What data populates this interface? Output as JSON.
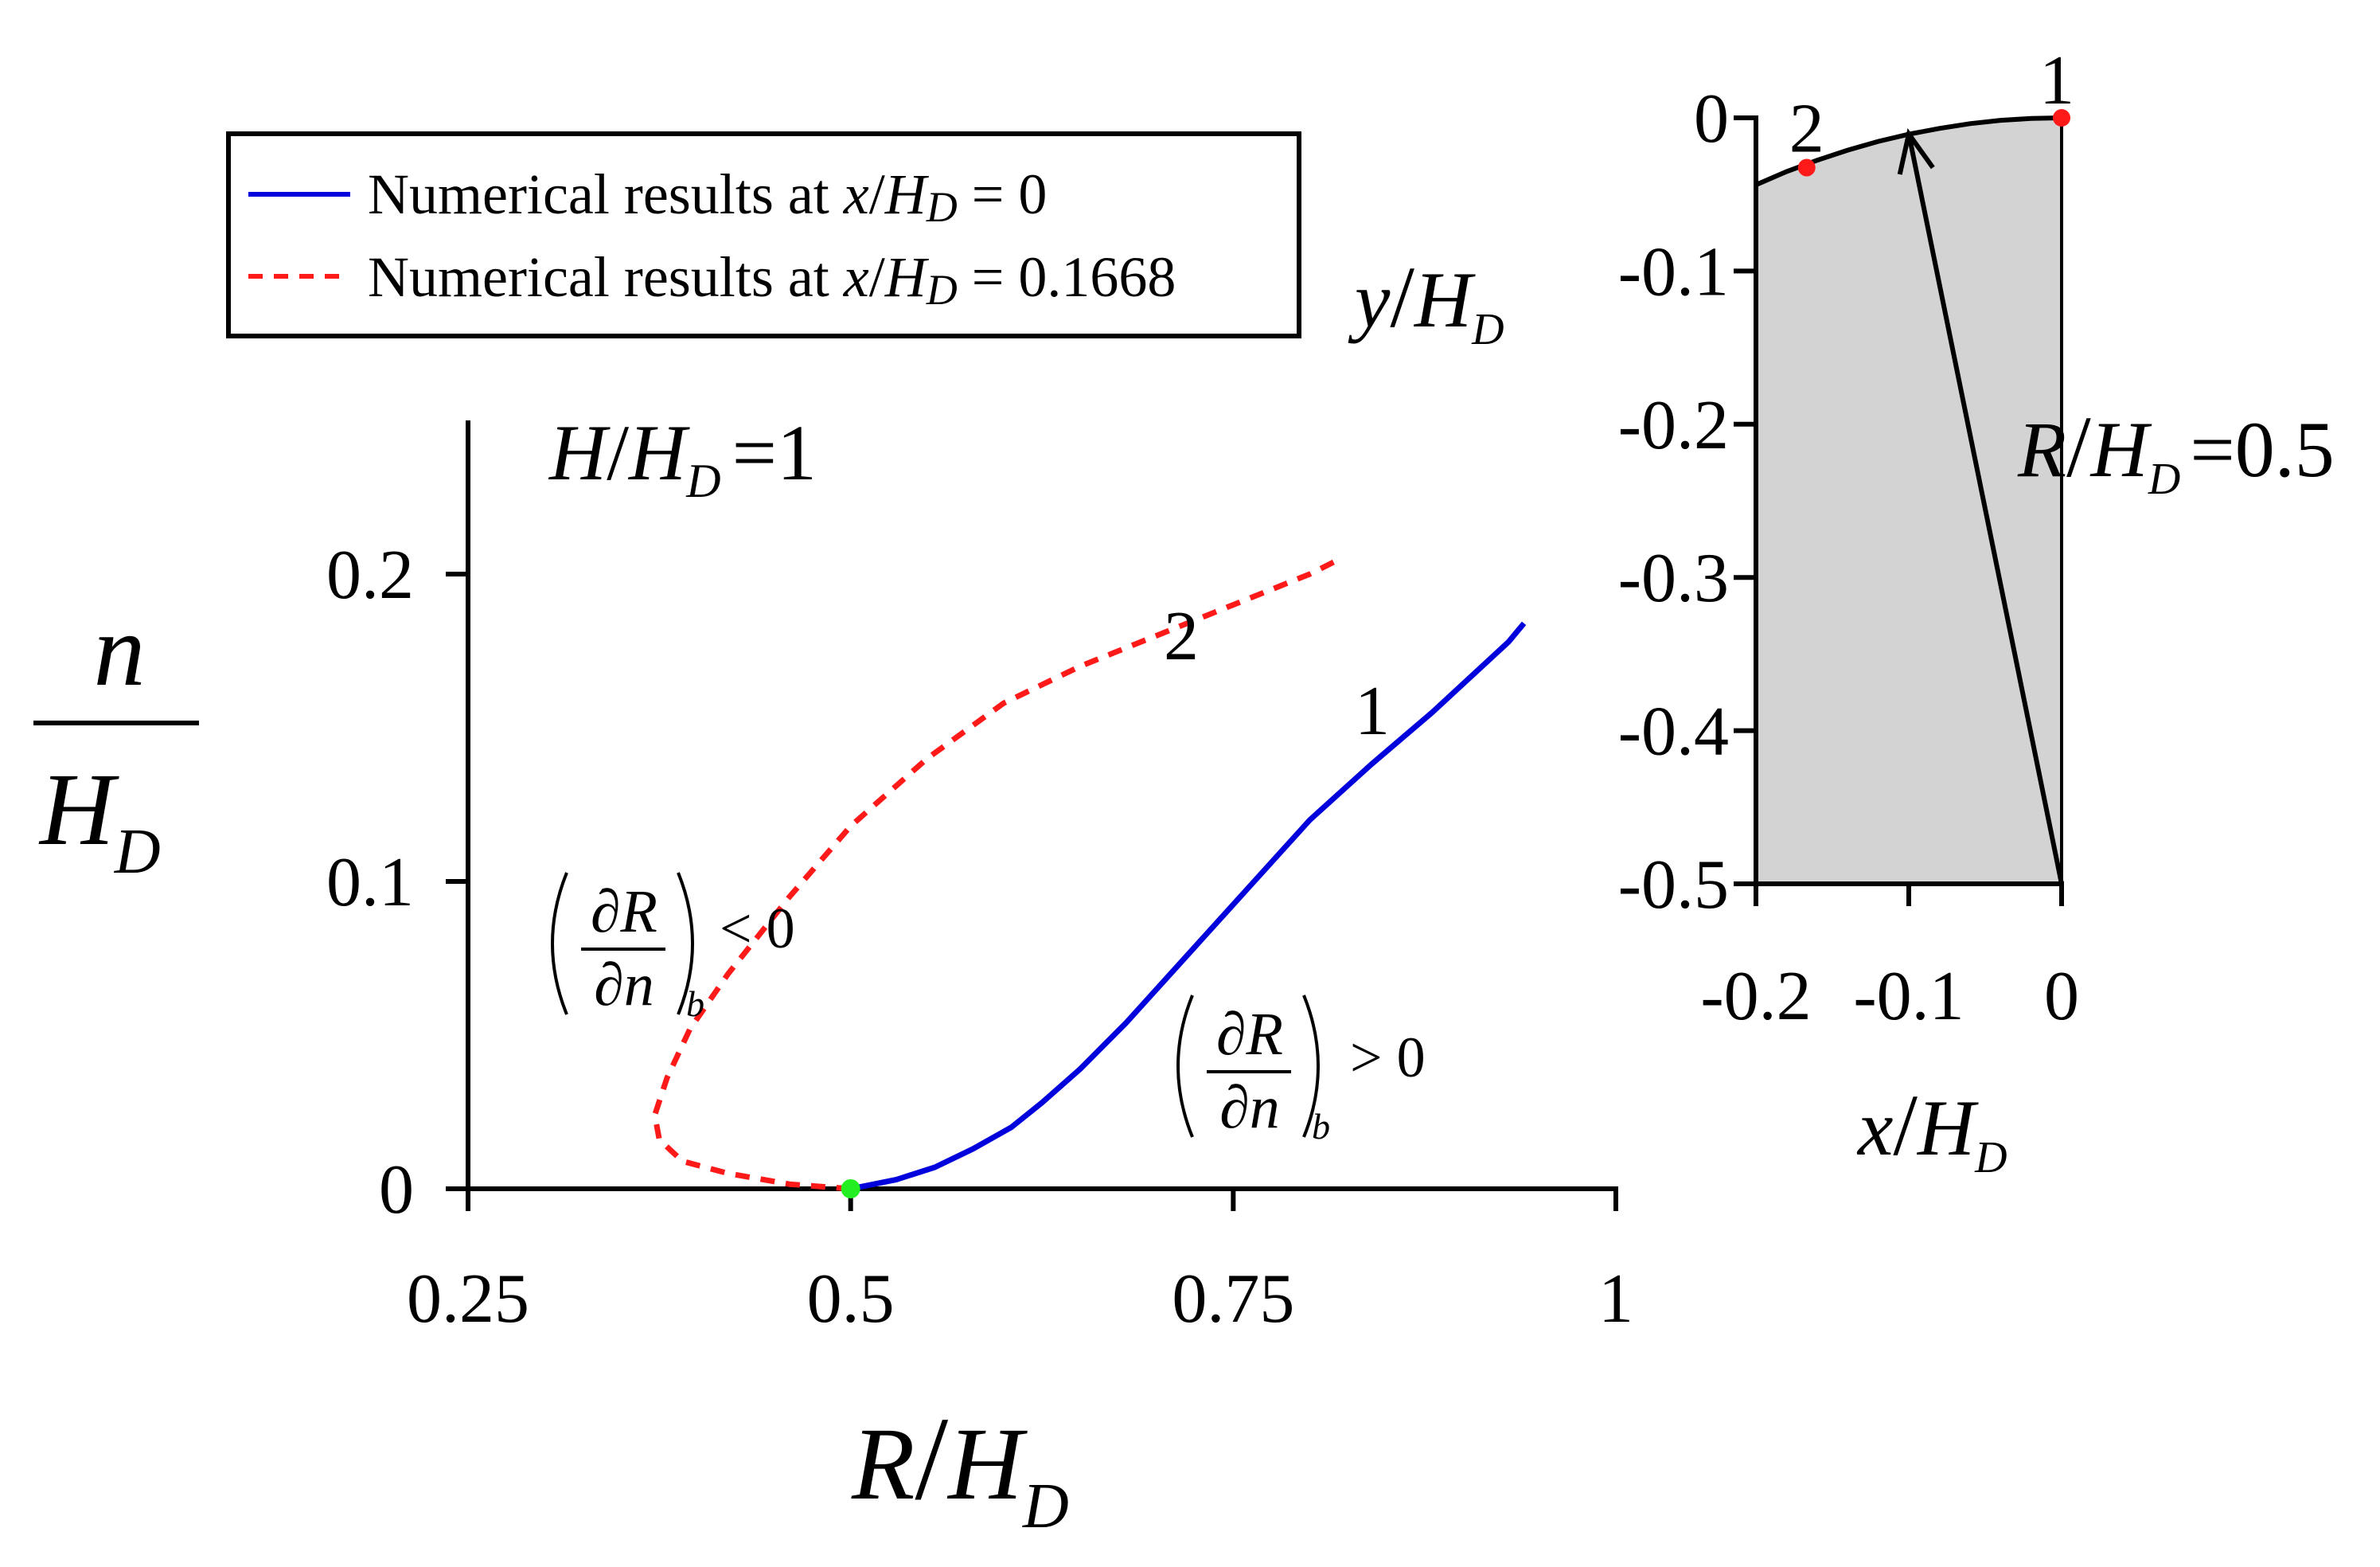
{
  "chart_data": [
    {
      "type": "line",
      "xlabel": "R/H_D",
      "ylabel": "n/H_D",
      "xlim": [
        0.25,
        1
      ],
      "ylim": [
        0,
        0.25
      ],
      "x_ticks": [
        "0.25",
        "0.5",
        "0.75",
        "1"
      ],
      "y_ticks": [
        "0",
        "0.1",
        "0.2"
      ],
      "grid": false,
      "legend_placement": "top-left",
      "legend": [
        {
          "text": "Numerical results at x/H_D = 0",
          "color": "#0000dd",
          "dash": "solid"
        },
        {
          "text": "Numerical results at x/H_D = 0.1668",
          "color": "#ff1a1a",
          "dash": "dashed"
        }
      ],
      "annotations": {
        "head_ratio": "H/H_D =1",
        "curve1_label": "1",
        "curve2_label": "2",
        "deriv_negative": "< 0",
        "deriv_positive": "> 0"
      },
      "series": [
        {
          "name": "Numerical results at x/H_D = 0",
          "label": "1",
          "color": "#0000dd",
          "points": [
            [
              0.5,
              0
            ],
            [
              0.53,
              0.003
            ],
            [
              0.555,
              0.007
            ],
            [
              0.58,
              0.013
            ],
            [
              0.605,
              0.02
            ],
            [
              0.625,
              0.028
            ],
            [
              0.65,
              0.039
            ],
            [
              0.68,
              0.054
            ],
            [
              0.72,
              0.076
            ],
            [
              0.76,
              0.098
            ],
            [
              0.8,
              0.12
            ],
            [
              0.84,
              0.138
            ],
            [
              0.88,
              0.155
            ],
            [
              0.93,
              0.178
            ],
            [
              0.94,
              0.184
            ]
          ]
        },
        {
          "name": "Numerical results at x/H_D = 0.1668",
          "label": "2",
          "color": "#ff1a1a",
          "points": [
            [
              0.5,
              0
            ],
            [
              0.46,
              0.0015
            ],
            [
              0.42,
              0.005
            ],
            [
              0.39,
              0.009
            ],
            [
              0.375,
              0.016
            ],
            [
              0.372,
              0.024
            ],
            [
              0.38,
              0.036
            ],
            [
              0.395,
              0.052
            ],
            [
              0.42,
              0.07
            ],
            [
              0.46,
              0.095
            ],
            [
              0.5,
              0.118
            ],
            [
              0.55,
              0.14
            ],
            [
              0.6,
              0.158
            ],
            [
              0.65,
              0.17
            ],
            [
              0.7,
              0.18
            ],
            [
              0.75,
              0.19
            ],
            [
              0.8,
              0.2
            ],
            [
              0.82,
              0.205
            ]
          ]
        }
      ],
      "markers": [
        {
          "x": 0.5,
          "y": 0,
          "color": "#22ee22"
        }
      ]
    },
    {
      "type": "line",
      "xlabel": "x/H_D",
      "ylabel": "y/H_D",
      "xlim": [
        -0.2,
        0
      ],
      "ylim": [
        -0.5,
        0
      ],
      "x_ticks": [
        "-0.2",
        "-0.1",
        "0"
      ],
      "y_ticks": [
        "0",
        "-0.1",
        "-0.2",
        "-0.3",
        "-0.4",
        "-0.5"
      ],
      "grid": false,
      "annotations": {
        "radius": "R/H_D =0.5"
      },
      "crest_profile": [
        [
          -0.2,
          -0.0437
        ],
        [
          -0.18,
          -0.0351
        ],
        [
          -0.16,
          -0.0277
        ],
        [
          -0.14,
          -0.0211
        ],
        [
          -0.12,
          -0.0154
        ],
        [
          -0.1,
          -0.0107
        ],
        [
          -0.08,
          -0.0069
        ],
        [
          -0.06,
          -0.0038
        ],
        [
          -0.04,
          -0.0016
        ],
        [
          -0.02,
          -0.0004
        ],
        [
          0,
          0
        ]
      ],
      "points": [
        {
          "label": "1",
          "x": 0,
          "y": 0,
          "color": "#ff1a1a"
        },
        {
          "label": "2",
          "x": -0.1668,
          "y": -0.0325,
          "color": "#ff1a1a"
        }
      ],
      "radius_arrow": {
        "from": [
          0,
          -0.5
        ],
        "to": [
          -0.1,
          -0.0105
        ]
      },
      "fill_color": "#d3d3d3"
    }
  ],
  "legend": {
    "item1_prefix": "Numerical results at ",
    "item1_var": "x",
    "item1_den": "H",
    "item1_den_sub": "D",
    "item1_value": " = 0",
    "item2_prefix": "Numerical results at ",
    "item2_var": "x",
    "item2_den": "H",
    "item2_den_sub": "D",
    "item2_value": " = 0.1668"
  },
  "math": {
    "main_y_num": "n",
    "main_y_den": "H",
    "main_y_den_sub": "D",
    "main_x_num": "R",
    "main_x_den": "H",
    "main_x_den_sub": "D",
    "inset_x_num": "x",
    "inset_x_den": "H",
    "inset_x_den_sub": "D",
    "inset_y_num": "y",
    "inset_y_den": "H",
    "inset_y_den_sub": "D",
    "head_num": "H",
    "head_den": "H",
    "head_den_sub": "D",
    "head_value": "=1",
    "radius_num": "R",
    "radius_den": "H",
    "radius_den_sub": "D",
    "radius_value": "=0.5",
    "deriv_num": "∂R",
    "deriv_den": "∂n",
    "deriv_sub": "b"
  }
}
